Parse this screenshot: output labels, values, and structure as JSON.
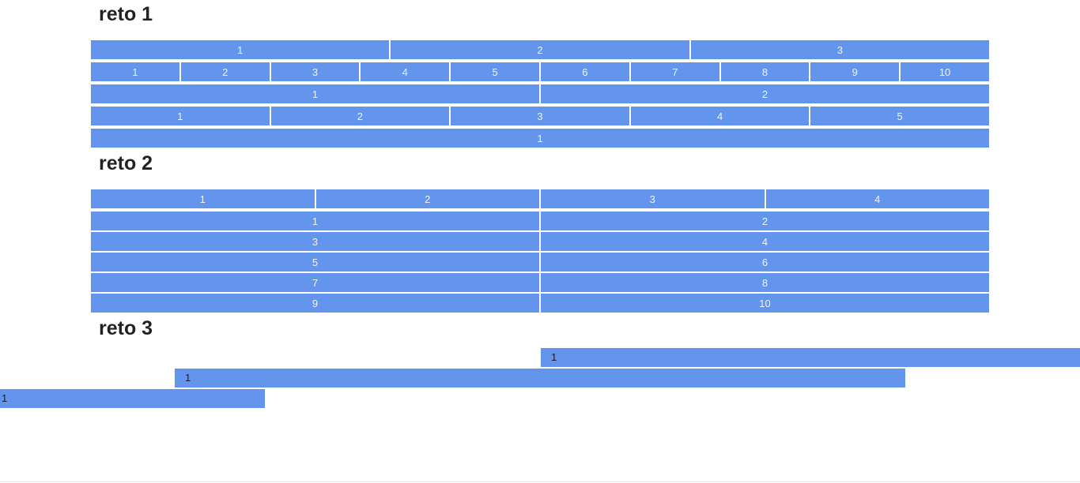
{
  "reto1": {
    "title": "reto 1",
    "rows": [
      [
        "1",
        "2",
        "3"
      ],
      [
        "1",
        "2",
        "3",
        "4",
        "5",
        "6",
        "7",
        "8",
        "9",
        "10"
      ],
      [
        "1",
        "2"
      ],
      [
        "1",
        "2",
        "3",
        "4",
        "5"
      ],
      [
        "1"
      ]
    ]
  },
  "reto2": {
    "title": "reto 2",
    "rows": [
      [
        "1",
        "2",
        "3",
        "4"
      ],
      [
        "1",
        "2"
      ],
      [
        "3",
        "4"
      ],
      [
        "5",
        "6"
      ],
      [
        "7",
        "8"
      ],
      [
        "9",
        "10"
      ]
    ]
  },
  "reto3": {
    "title": "reto 3",
    "bars": [
      "1",
      "1",
      "1"
    ]
  },
  "colors": {
    "cell_bg": "#6495ed",
    "cell_text": "#f0f4ff",
    "heading_text": "#222222"
  }
}
